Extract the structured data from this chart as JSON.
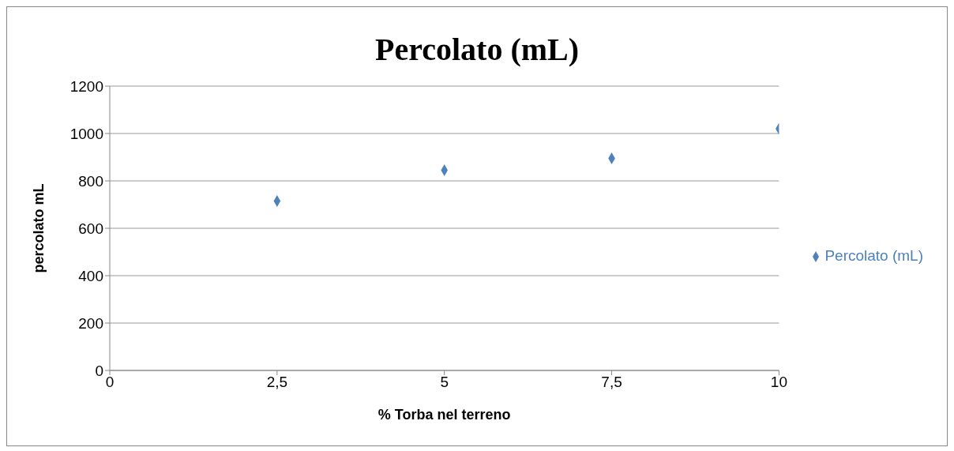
{
  "chart_data": {
    "type": "scatter",
    "title": "Percolato (mL)",
    "xlabel": "% Torba nel terreno",
    "ylabel": "percolato mL",
    "x": [
      2.5,
      5,
      7.5,
      10
    ],
    "series": [
      {
        "name": "Percolato (mL)",
        "color": "#4f81bd",
        "values": [
          715,
          845,
          895,
          1020
        ]
      }
    ],
    "xlim": [
      0,
      10
    ],
    "xticks": [
      0,
      {
        "value": 2.5,
        "label": "2,5"
      },
      5,
      {
        "value": 7.5,
        "label": "7,5"
      },
      10
    ],
    "ylim": [
      0,
      1200
    ],
    "yticks": [
      0,
      200,
      400,
      600,
      800,
      1000,
      1200
    ],
    "grid": "y",
    "legend": "right",
    "marker": "diamond"
  }
}
